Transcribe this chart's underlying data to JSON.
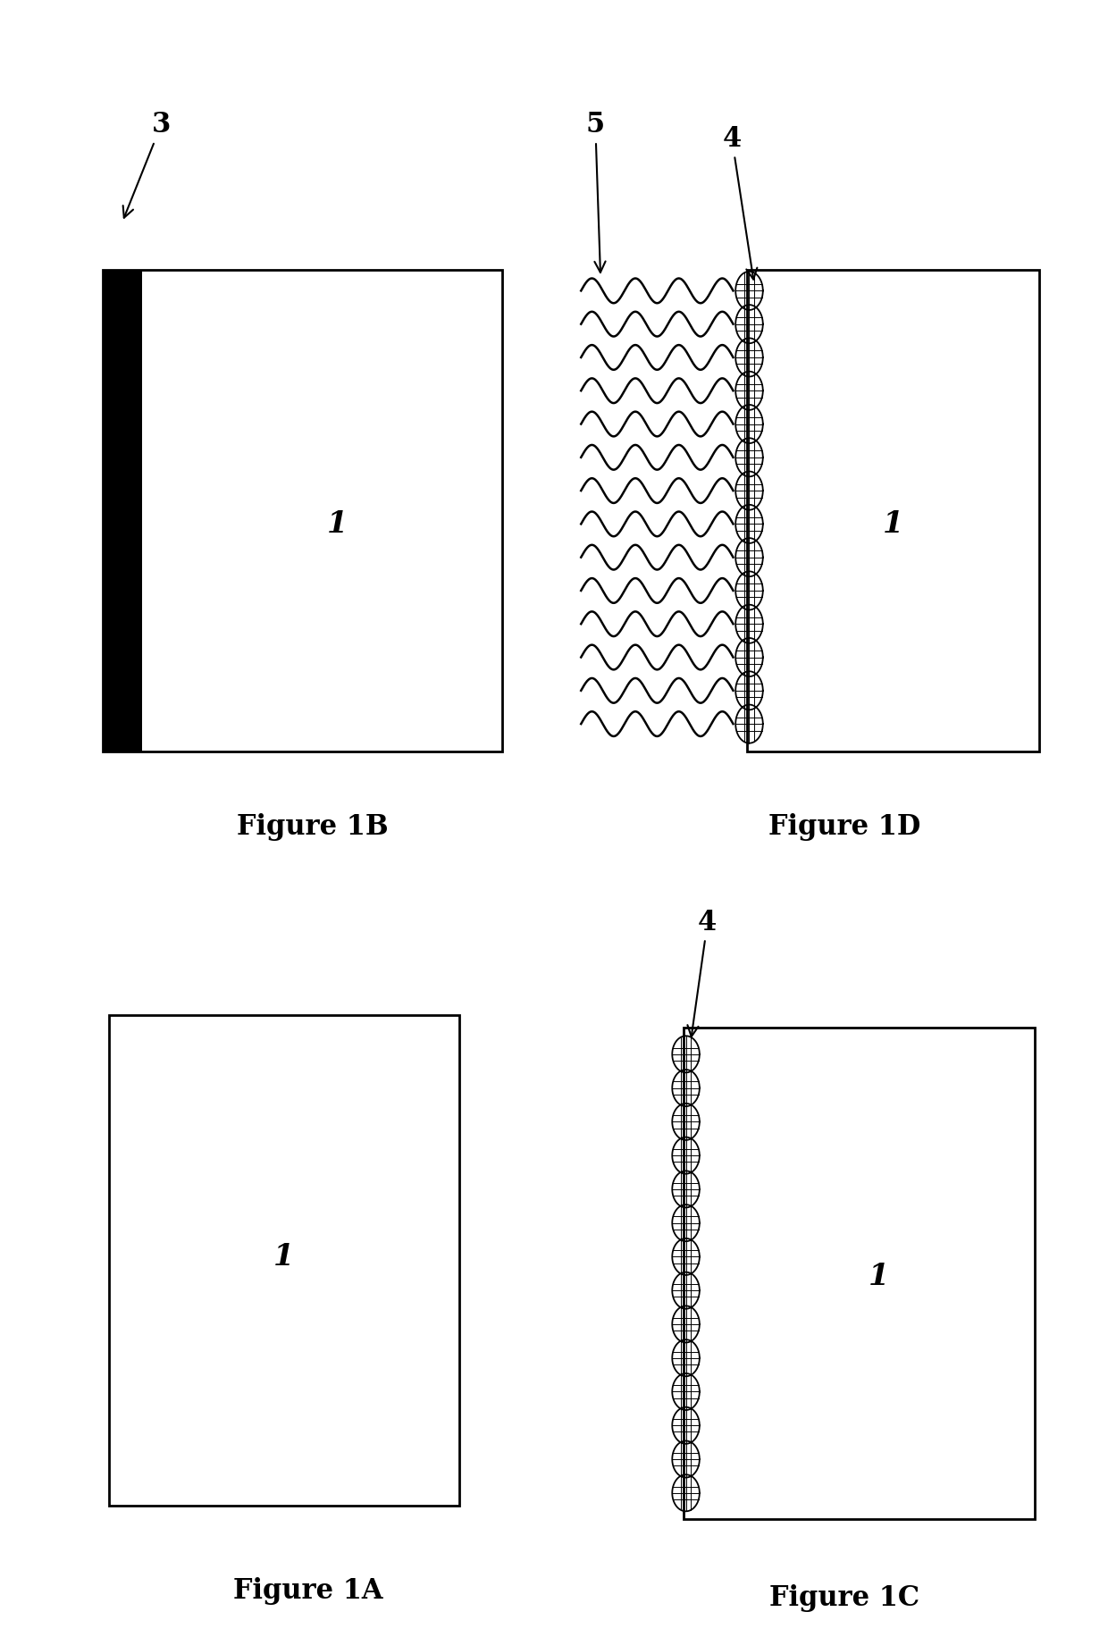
{
  "bg_color": "#ffffff",
  "fig_label_fontsize": 22,
  "annotation_fontsize": 20,
  "panel_label_fontsize": 18,
  "panels": {
    "1A": {
      "label": "Figure 1A",
      "rect_label": "1"
    },
    "1B": {
      "label": "Figure 1B",
      "rect_label": "1",
      "has_film": true,
      "film_label": "3"
    },
    "1C": {
      "label": "Figure 1C",
      "rect_label": "1",
      "has_dots": true,
      "dot_label": "4"
    },
    "1D": {
      "label": "Figure 1D",
      "rect_label": "1",
      "has_dots": true,
      "has_waves": true,
      "dot_label": "4",
      "wave_label": "5"
    }
  }
}
